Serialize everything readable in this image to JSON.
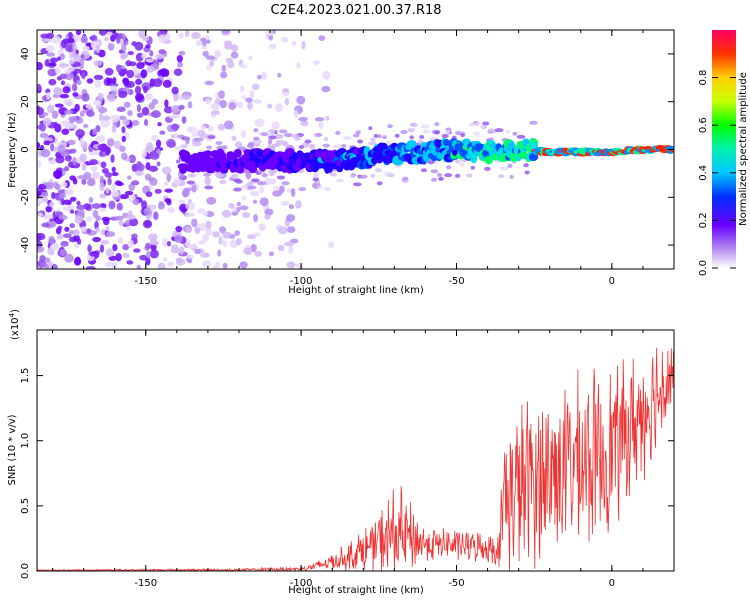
{
  "title": "C2E4.2023.021.00.37.R18",
  "colors": {
    "trace": "#ee3333",
    "sparse": "#7722ee",
    "frame": "#000000"
  },
  "chart_data": [
    {
      "type": "heatmap",
      "title": "C2E4.2023.021.00.37.R18",
      "xlabel": "Height of straight line (km)",
      "ylabel": "Frequency (Hz)",
      "xlim": [
        -185,
        20
      ],
      "ylim": [
        -50,
        50
      ],
      "xticks": [
        -150,
        -100,
        -50,
        0
      ],
      "xtick_labels": [
        "-150",
        "-100",
        "-50",
        "0"
      ],
      "yticks": [
        -40,
        -20,
        0,
        20,
        40
      ],
      "ytick_labels": [
        "-40",
        "-20",
        "0",
        "20",
        "40"
      ],
      "ridge": [
        {
          "x": -140,
          "y": -5
        },
        {
          "x": -130,
          "y": -5
        },
        {
          "x": -120,
          "y": -5
        },
        {
          "x": -110,
          "y": -4
        },
        {
          "x": -100,
          "y": -5
        },
        {
          "x": -90,
          "y": -5
        },
        {
          "x": -80,
          "y": -3
        },
        {
          "x": -70,
          "y": -2
        },
        {
          "x": -60,
          "y": -1
        },
        {
          "x": -50,
          "y": 0
        },
        {
          "x": -40,
          "y": -1
        },
        {
          "x": -30,
          "y": 0
        },
        {
          "x": -20,
          "y": -1
        },
        {
          "x": -10,
          "y": -1
        },
        {
          "x": 0,
          "y": -1
        },
        {
          "x": 10,
          "y": 0
        },
        {
          "x": 20,
          "y": 0
        }
      ],
      "colorbar": {
        "label": "Normalized spectral amplitude",
        "range": [
          0,
          1
        ],
        "ticks": [
          0.0,
          0.2,
          0.4,
          0.6,
          0.8
        ],
        "tick_labels": [
          "0.0",
          "0.2",
          "0.4",
          "0.6",
          "0.8"
        ]
      }
    },
    {
      "type": "line",
      "xlabel": "Height of straight line (km)",
      "ylabel": "SNR (10 * v/v)",
      "scale_label": "(x10",
      "scale_exp": "4",
      "xlim": [
        -185,
        20
      ],
      "ylim": [
        0,
        18500
      ],
      "xticks": [
        -150,
        -100,
        -50,
        0
      ],
      "xtick_labels": [
        "-150",
        "-100",
        "-50",
        "0"
      ],
      "yticks": [
        0,
        5000,
        10000,
        15000
      ],
      "ytick_labels": [
        "0.0",
        "0.5",
        "1.0",
        "1.5"
      ],
      "envelope": [
        {
          "x": -185,
          "base": 60,
          "amp": 40
        },
        {
          "x": -120,
          "base": 80,
          "amp": 80
        },
        {
          "x": -100,
          "base": 150,
          "amp": 150
        },
        {
          "x": -95,
          "base": 350,
          "amp": 350
        },
        {
          "x": -85,
          "base": 1000,
          "amp": 900
        },
        {
          "x": -75,
          "base": 2000,
          "amp": 2000
        },
        {
          "x": -70,
          "base": 2500,
          "amp": 3500
        },
        {
          "x": -65,
          "base": 2300,
          "amp": 2500
        },
        {
          "x": -60,
          "base": 2000,
          "amp": 1200
        },
        {
          "x": -50,
          "base": 1900,
          "amp": 1100
        },
        {
          "x": -40,
          "base": 1700,
          "amp": 1000
        },
        {
          "x": -36,
          "base": 1500,
          "amp": 1200
        },
        {
          "x": -35,
          "base": 5000,
          "amp": 5500
        },
        {
          "x": -25,
          "base": 6500,
          "amp": 6000
        },
        {
          "x": -15,
          "base": 7500,
          "amp": 5500
        },
        {
          "x": -5,
          "base": 8000,
          "amp": 6000
        },
        {
          "x": 5,
          "base": 10000,
          "amp": 5000
        },
        {
          "x": 15,
          "base": 13500,
          "amp": 4000
        },
        {
          "x": 20,
          "base": 15000,
          "amp": 3000
        }
      ]
    }
  ]
}
